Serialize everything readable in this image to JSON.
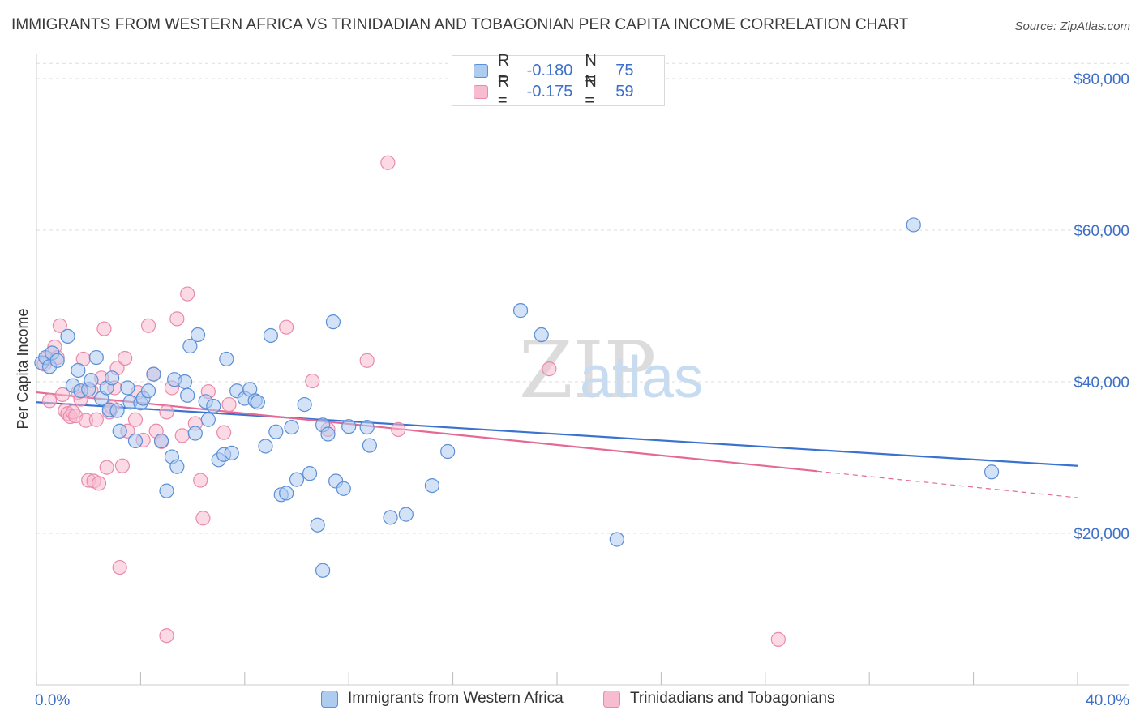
{
  "header": {
    "title": "IMMIGRANTS FROM WESTERN AFRICA VS TRINIDADIAN AND TOBAGONIAN PER CAPITA INCOME CORRELATION CHART",
    "source": "Source: ZipAtlas.com"
  },
  "legend_top": {
    "rows": [
      {
        "r_label": "R =",
        "r_value": "-0.180",
        "n_label": "N =",
        "n_value": "75"
      },
      {
        "r_label": "R =",
        "r_value": "-0.175",
        "n_label": "N =",
        "n_value": "59"
      }
    ]
  },
  "legend_bottom": {
    "items": [
      {
        "label": "Immigrants from Western Africa"
      },
      {
        "label": "Trinidadians and Tobagonians"
      }
    ]
  },
  "watermark": {
    "zip": "ZIP",
    "atlas": "atlas"
  },
  "colors": {
    "blue_fill": "#aecbf0",
    "blue_stroke": "#5b8fd6",
    "blue_line": "#3a72cf",
    "pink_fill": "#f7bcd0",
    "pink_stroke": "#e98aab",
    "pink_line": "#e46a95",
    "axis_text": "#3d6fc8"
  },
  "chart_data": {
    "type": "scatter",
    "title": "IMMIGRANTS FROM WESTERN AFRICA VS TRINIDADIAN AND TOBAGONIAN PER CAPITA INCOME CORRELATION CHART",
    "xlabel": "",
    "ylabel": "Per Capita Income",
    "xlim": [
      0,
      40
    ],
    "ylim": [
      0,
      82000
    ],
    "x_tick_labels": [
      "0.0%",
      "40.0%"
    ],
    "y_ticks": [
      20000,
      40000,
      60000,
      80000
    ],
    "y_tick_labels": [
      "$20,000",
      "$40,000",
      "$60,000",
      "$80,000"
    ],
    "grid": true,
    "series": [
      {
        "name": "Immigrants from Western Africa",
        "r": -0.18,
        "n": 75,
        "trend": {
          "x0": 0,
          "y0": 37300,
          "x1": 40,
          "y1": 28900
        },
        "points": [
          [
            0.2,
            42500
          ],
          [
            0.35,
            43200
          ],
          [
            0.5,
            42000
          ],
          [
            0.6,
            43800
          ],
          [
            0.8,
            42800
          ],
          [
            1.2,
            46000
          ],
          [
            1.4,
            39500
          ],
          [
            1.6,
            41500
          ],
          [
            1.7,
            38800
          ],
          [
            2.0,
            39000
          ],
          [
            2.1,
            40200
          ],
          [
            2.3,
            43200
          ],
          [
            2.5,
            37800
          ],
          [
            2.7,
            39200
          ],
          [
            2.8,
            36300
          ],
          [
            2.9,
            40500
          ],
          [
            3.1,
            36200
          ],
          [
            3.2,
            33500
          ],
          [
            3.5,
            39200
          ],
          [
            3.6,
            37300
          ],
          [
            3.8,
            32200
          ],
          [
            4.0,
            37200
          ],
          [
            4.1,
            37800
          ],
          [
            4.3,
            38800
          ],
          [
            4.5,
            41000
          ],
          [
            4.8,
            32200
          ],
          [
            5.0,
            25600
          ],
          [
            5.2,
            30100
          ],
          [
            5.3,
            40300
          ],
          [
            5.4,
            28800
          ],
          [
            5.7,
            40000
          ],
          [
            5.8,
            38200
          ],
          [
            5.9,
            44700
          ],
          [
            6.1,
            33200
          ],
          [
            6.2,
            46200
          ],
          [
            6.5,
            37400
          ],
          [
            6.6,
            35000
          ],
          [
            6.8,
            36800
          ],
          [
            7.0,
            29700
          ],
          [
            7.2,
            30400
          ],
          [
            7.5,
            30600
          ],
          [
            7.3,
            43000
          ],
          [
            7.7,
            38800
          ],
          [
            8.0,
            37800
          ],
          [
            8.2,
            39000
          ],
          [
            8.4,
            37500
          ],
          [
            8.5,
            37300
          ],
          [
            8.8,
            31500
          ],
          [
            9.0,
            46100
          ],
          [
            9.2,
            33400
          ],
          [
            9.4,
            25100
          ],
          [
            9.6,
            25300
          ],
          [
            9.8,
            34000
          ],
          [
            10.0,
            27100
          ],
          [
            10.3,
            37000
          ],
          [
            10.5,
            27900
          ],
          [
            10.8,
            21100
          ],
          [
            11.0,
            34300
          ],
          [
            11.2,
            33100
          ],
          [
            11.4,
            47900
          ],
          [
            11.0,
            15100
          ],
          [
            11.5,
            26900
          ],
          [
            11.8,
            25900
          ],
          [
            12.0,
            34100
          ],
          [
            12.7,
            34000
          ],
          [
            12.8,
            31600
          ],
          [
            13.6,
            22100
          ],
          [
            14.2,
            22500
          ],
          [
            15.2,
            26300
          ],
          [
            15.8,
            30800
          ],
          [
            18.6,
            49400
          ],
          [
            19.4,
            46200
          ],
          [
            22.3,
            19200
          ],
          [
            33.7,
            60700
          ],
          [
            36.7,
            28100
          ]
        ]
      },
      {
        "name": "Trinidadians and Tobagonians",
        "r": -0.175,
        "n": 59,
        "trend": {
          "x0": 0,
          "y0": 38600,
          "x1": 30,
          "y1": 28200
        },
        "trend_dashed": {
          "x0": 30,
          "y0": 28200,
          "x1": 40,
          "y1": 24700
        },
        "points": [
          [
            0.3,
            42300
          ],
          [
            0.4,
            43100
          ],
          [
            0.5,
            37500
          ],
          [
            0.7,
            44600
          ],
          [
            0.8,
            43200
          ],
          [
            0.9,
            47400
          ],
          [
            1.0,
            38300
          ],
          [
            1.1,
            36200
          ],
          [
            1.2,
            35800
          ],
          [
            1.3,
            35400
          ],
          [
            1.4,
            36000
          ],
          [
            1.5,
            35500
          ],
          [
            1.6,
            38600
          ],
          [
            1.7,
            37700
          ],
          [
            1.8,
            43000
          ],
          [
            1.9,
            34900
          ],
          [
            2.0,
            27000
          ],
          [
            2.1,
            38800
          ],
          [
            2.2,
            26900
          ],
          [
            2.3,
            35000
          ],
          [
            2.4,
            26600
          ],
          [
            2.5,
            40500
          ],
          [
            2.6,
            47000
          ],
          [
            2.7,
            28700
          ],
          [
            2.8,
            36000
          ],
          [
            2.9,
            36600
          ],
          [
            3.0,
            39200
          ],
          [
            3.1,
            41800
          ],
          [
            3.2,
            15500
          ],
          [
            3.3,
            28900
          ],
          [
            3.4,
            43100
          ],
          [
            3.5,
            33500
          ],
          [
            3.8,
            35000
          ],
          [
            3.9,
            38600
          ],
          [
            4.1,
            32300
          ],
          [
            4.3,
            47400
          ],
          [
            4.5,
            41000
          ],
          [
            4.6,
            33500
          ],
          [
            4.8,
            32100
          ],
          [
            5.0,
            6500
          ],
          [
            5.2,
            39200
          ],
          [
            5.4,
            48300
          ],
          [
            5.6,
            32900
          ],
          [
            5.8,
            51600
          ],
          [
            6.1,
            34500
          ],
          [
            6.3,
            27000
          ],
          [
            6.4,
            22000
          ],
          [
            6.6,
            38700
          ],
          [
            7.2,
            33300
          ],
          [
            7.4,
            37000
          ],
          [
            9.6,
            47200
          ],
          [
            10.6,
            40100
          ],
          [
            11.2,
            33700
          ],
          [
            12.7,
            42800
          ],
          [
            13.5,
            68900
          ],
          [
            13.9,
            33700
          ],
          [
            19.7,
            41700
          ],
          [
            28.5,
            6000
          ],
          [
            5.0,
            36000
          ]
        ]
      }
    ]
  }
}
